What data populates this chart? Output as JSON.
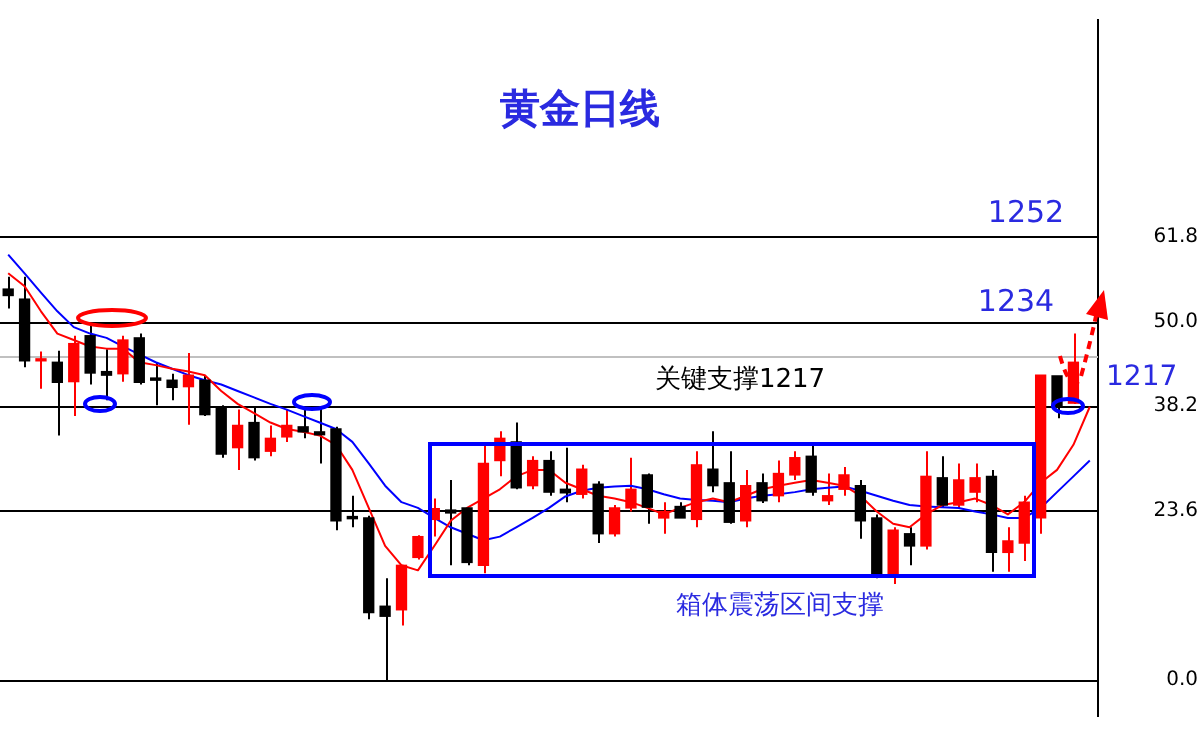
{
  "chart_data": {
    "type": "candlestick",
    "title": "黄金日线",
    "categories": [
      null,
      null,
      null,
      null,
      null,
      null,
      null,
      null,
      null,
      null,
      null,
      null,
      null,
      null,
      null,
      null,
      null,
      null,
      null,
      null,
      null,
      null,
      null,
      null,
      null,
      null,
      null,
      null,
      null,
      null,
      null,
      null,
      null,
      null,
      null,
      null,
      null,
      null,
      null,
      null,
      null,
      null,
      null,
      null,
      null,
      null,
      null,
      null,
      null,
      null,
      null,
      null,
      null,
      null,
      null,
      null,
      null,
      null,
      null,
      null,
      null,
      null,
      null,
      null,
      null,
      null,
      null
    ],
    "ohlc": [
      [
        54.5,
        56.2,
        51.8,
        53.6
      ],
      [
        53.1,
        56.2,
        43.6,
        44.5
      ],
      [
        44.5,
        45.8,
        40.6,
        44.7
      ],
      [
        44.3,
        45.9,
        34.1,
        41.5
      ],
      [
        41.6,
        48.0,
        36.8,
        46.9
      ],
      [
        48.0,
        49.6,
        41.2,
        42.8
      ],
      [
        43.0,
        46.1,
        39.0,
        42.5
      ],
      [
        42.7,
        48.0,
        41.6,
        47.4
      ],
      [
        47.7,
        48.3,
        41.2,
        41.5
      ],
      [
        42.1,
        44.3,
        38.3,
        41.8
      ],
      [
        41.8,
        42.7,
        39.0,
        40.8
      ],
      [
        40.9,
        45.6,
        35.6,
        42.5
      ],
      [
        41.8,
        42.5,
        36.8,
        37.0
      ],
      [
        38.1,
        38.3,
        31.0,
        31.5
      ],
      [
        32.4,
        37.7,
        29.3,
        35.5
      ],
      [
        35.9,
        38.1,
        30.6,
        31.0
      ],
      [
        31.9,
        35.5,
        31.2,
        33.7
      ],
      [
        33.9,
        37.7,
        33.2,
        35.5
      ],
      [
        35.3,
        37.7,
        33.7,
        34.6
      ],
      [
        34.6,
        38.1,
        30.2,
        34.2
      ],
      [
        35.0,
        35.3,
        20.9,
        22.2
      ],
      [
        22.8,
        25.7,
        21.3,
        22.5
      ],
      [
        22.6,
        22.9,
        8.5,
        9.4
      ],
      [
        10.3,
        14.2,
        0,
        8.9
      ],
      [
        9.8,
        16.0,
        7.6,
        16.0
      ],
      [
        17.1,
        20.2,
        16.8,
        20.0
      ],
      [
        22.4,
        25.3,
        20.0,
        23.9
      ],
      [
        23.7,
        27.9,
        16.0,
        23.3
      ],
      [
        24.0,
        24.0,
        16.0,
        16.4
      ],
      [
        16.0,
        33.2,
        14.9,
        30.2
      ],
      [
        30.6,
        34.7,
        28.4,
        33.7
      ],
      [
        33.2,
        35.9,
        26.6,
        26.8
      ],
      [
        27.1,
        31.2,
        26.6,
        30.6
      ],
      [
        30.6,
        31.9,
        25.7,
        26.2
      ],
      [
        26.6,
        32.4,
        24.8,
        26.1
      ],
      [
        25.9,
        30.0,
        25.3,
        29.4
      ],
      [
        27.3,
        27.7,
        19.1,
        20.4
      ],
      [
        20.4,
        24.4,
        20.0,
        24.0
      ],
      [
        24.0,
        31.0,
        23.5,
        26.6
      ],
      [
        28.6,
        28.8,
        21.8,
        24.1
      ],
      [
        22.6,
        24.8,
        20.4,
        23.5
      ],
      [
        24.2,
        24.8,
        22.6,
        22.6
      ],
      [
        22.4,
        31.9,
        21.3,
        30.0
      ],
      [
        29.4,
        34.7,
        26.2,
        27.1
      ],
      [
        27.5,
        31.9,
        21.8,
        22.0
      ],
      [
        22.2,
        29.3,
        21.3,
        27.1
      ],
      [
        27.5,
        28.8,
        24.7,
        25.0
      ],
      [
        25.7,
        30.6,
        24.8,
        28.8
      ],
      [
        28.6,
        31.9,
        27.9,
        31.0
      ],
      [
        31.2,
        33.2,
        25.7,
        26.2
      ],
      [
        25.0,
        28.8,
        24.4,
        25.7
      ],
      [
        26.6,
        29.7,
        25.7,
        28.6
      ],
      [
        27.1,
        27.9,
        19.7,
        22.2
      ],
      [
        22.6,
        23.1,
        14.2,
        14.7
      ],
      [
        14.7,
        21.3,
        13.4,
        20.9
      ],
      [
        20.4,
        21.3,
        16.0,
        18.7
      ],
      [
        18.7,
        31.9,
        18.2,
        28.4
      ],
      [
        28.2,
        31.2,
        24.0,
        24.4
      ],
      [
        24.4,
        30.2,
        24.0,
        27.9
      ],
      [
        26.2,
        30.2,
        24.8,
        28.2
      ],
      [
        28.4,
        29.3,
        15.1,
        17.8
      ],
      [
        17.8,
        21.3,
        15.1,
        19.4
      ],
      [
        19.1,
        25.7,
        16.6,
        24.8
      ],
      [
        22.6,
        42.5,
        20.4,
        42.5
      ],
      [
        42.4,
        42.4,
        36.5,
        38.1
      ],
      [
        38.6,
        48.3,
        38.5,
        44.3
      ],
      null
    ],
    "colors": [
      "#000000",
      "#000000",
      "#ff0000",
      "#000000",
      "#ff0000",
      "#000000",
      "#000000",
      "#ff0000",
      "#000000",
      "#000000",
      "#000000",
      "#ff0000",
      "#000000",
      "#000000",
      "#ff0000",
      "#000000",
      "#ff0000",
      "#ff0000",
      "#000000",
      "#000000",
      "#000000",
      "#000000",
      "#000000",
      "#000000",
      "#ff0000",
      "#ff0000",
      "#ff0000",
      "#000000",
      "#000000",
      "#ff0000",
      "#ff0000",
      "#000000",
      "#ff0000",
      "#000000",
      "#000000",
      "#ff0000",
      "#000000",
      "#ff0000",
      "#ff0000",
      "#000000",
      "#ff0000",
      "#000000",
      "#ff0000",
      "#000000",
      "#000000",
      "#ff0000",
      "#000000",
      "#ff0000",
      "#ff0000",
      "#000000",
      "#ff0000",
      "#ff0000",
      "#000000",
      "#000000",
      "#ff0000",
      "#000000",
      "#ff0000",
      "#000000",
      "#ff0000",
      "#ff0000",
      "#000000",
      "#ff0000",
      "#ff0000",
      "#ff0000",
      "#000000",
      "#ff0000",
      null
    ],
    "series": [
      {
        "type": "line",
        "color": "#ff0000",
        "values": [
          56.7,
          54.9,
          51.4,
          48.3,
          47.4,
          46.5,
          46.2,
          46.2,
          44.3,
          43.9,
          43.4,
          43.0,
          42.5,
          40.3,
          38.5,
          37.2,
          35.9,
          35.0,
          34.6,
          34.1,
          32.8,
          29.3,
          24.0,
          18.7,
          16.0,
          15.3,
          18.7,
          22.2,
          24.0,
          25.3,
          26.6,
          28.4,
          29.3,
          29.3,
          27.5,
          26.6,
          25.7,
          25.3,
          24.8,
          24.0,
          23.1,
          24.0,
          24.8,
          25.3,
          24.8,
          25.7,
          26.6,
          27.1,
          27.5,
          27.9,
          27.5,
          27.1,
          25.7,
          23.5,
          21.8,
          21.3,
          23.1,
          24.4,
          24.8,
          25.3,
          24.4,
          23.1,
          24.8,
          27.5,
          29.3,
          32.8,
          38.1
        ]
      },
      {
        "type": "line",
        "color": "#0000ff",
        "values": [
          59.3,
          56.7,
          54.0,
          51.4,
          49.2,
          48.3,
          47.7,
          46.5,
          45.4,
          44.3,
          43.4,
          42.5,
          41.8,
          41.2,
          40.3,
          39.4,
          38.5,
          37.7,
          36.8,
          35.9,
          35.0,
          33.2,
          30.2,
          27.1,
          24.8,
          24.0,
          22.6,
          21.3,
          20.4,
          19.5,
          20.0,
          21.3,
          22.6,
          24.0,
          25.6,
          26.4,
          26.8,
          27.0,
          27.1,
          26.6,
          25.9,
          25.3,
          25.1,
          25.0,
          24.8,
          25.3,
          25.7,
          25.9,
          26.2,
          26.6,
          26.8,
          27.0,
          26.4,
          25.7,
          25.0,
          24.4,
          24.2,
          24.1,
          24.0,
          23.5,
          23.1,
          22.6,
          22.6,
          24.0,
          26.2,
          28.4,
          30.6
        ]
      }
    ],
    "ylim": [
      -5,
      92
    ],
    "yticks": [
      {
        "value": 0,
        "label": "0.0"
      },
      23.6,
      38.2,
      {
        "value": 50,
        "label": "50.0"
      },
      61.8
    ],
    "ref_lines": [
      {
        "axis": "y",
        "value": 0,
        "color": "#000000"
      },
      {
        "axis": "y",
        "value": 23.6,
        "color": "#000000"
      },
      {
        "axis": "y",
        "value": 38.2,
        "color": "#000000"
      },
      {
        "axis": "y",
        "value": 45.1,
        "color": "#c0c0c0"
      },
      {
        "axis": "y",
        "value": 50,
        "color": "#000000"
      },
      {
        "axis": "y",
        "value": 61.8,
        "color": "#000000"
      }
    ],
    "annotations": [
      {
        "text": "1252",
        "y": 61.8
      },
      {
        "text": "1234",
        "y": 50
      },
      "1217",
      {
        "text": "关键支撑1217",
        "y": 38.2
      },
      "箱体震荡区间支撑"
    ],
    "tick_labels": "y",
    "grid": false,
    "legend": false
  }
}
